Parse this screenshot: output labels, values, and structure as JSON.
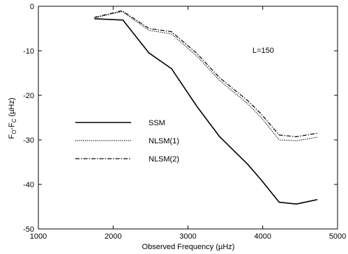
{
  "chart_data": {
    "type": "line",
    "title": "",
    "xlabel": "Observed Frequency (µHz)",
    "ylabel": "F",
    "ylabel_sub1": "O",
    "ylabel_dash": "-F",
    "ylabel_sub2": "C",
    "ylabel_unit": " (µHz)",
    "xlim": [
      1000,
      5000
    ],
    "ylim": [
      -50,
      0
    ],
    "xticks": [
      1000,
      2000,
      3000,
      4000,
      5000
    ],
    "yticks": [
      0,
      -10,
      -20,
      -30,
      -40,
      -50
    ],
    "xtick_labels": [
      "1000",
      "2000",
      "3000",
      "4000",
      "5000"
    ],
    "ytick_labels": [
      "0",
      "-10",
      "-20",
      "-30",
      "-40",
      "-50"
    ],
    "grid": false,
    "legend_position": "left-middle",
    "annotation": "L=150",
    "series": [
      {
        "name": "SSM",
        "style": "solid",
        "points": [
          [
            1750,
            -2.8
          ],
          [
            2130,
            -3.1
          ],
          [
            2480,
            -10.5
          ],
          [
            2780,
            -14.0
          ],
          [
            3120,
            -22.5
          ],
          [
            3420,
            -29.2
          ],
          [
            3800,
            -35.5
          ],
          [
            3980,
            -39.0
          ],
          [
            4220,
            -44.0
          ],
          [
            4450,
            -44.4
          ],
          [
            4730,
            -43.4
          ]
        ]
      },
      {
        "name": "NLSM(1)",
        "style": "dotted",
        "points": [
          [
            1750,
            -2.6
          ],
          [
            2120,
            -1.2
          ],
          [
            2480,
            -5.4
          ],
          [
            2780,
            -6.2
          ],
          [
            3120,
            -11.2
          ],
          [
            3420,
            -16.6
          ],
          [
            3800,
            -21.9
          ],
          [
            3980,
            -25.0
          ],
          [
            4220,
            -30.0
          ],
          [
            4450,
            -30.2
          ],
          [
            4730,
            -29.4
          ]
        ]
      },
      {
        "name": "NLSM(2)",
        "style": "dashdot",
        "points": [
          [
            1750,
            -2.5
          ],
          [
            2120,
            -1.0
          ],
          [
            2480,
            -5.0
          ],
          [
            2780,
            -5.7
          ],
          [
            3120,
            -10.6
          ],
          [
            3420,
            -16.0
          ],
          [
            3800,
            -21.2
          ],
          [
            3980,
            -24.2
          ],
          [
            4220,
            -28.9
          ],
          [
            4450,
            -29.3
          ],
          [
            4730,
            -28.5
          ]
        ]
      }
    ]
  }
}
